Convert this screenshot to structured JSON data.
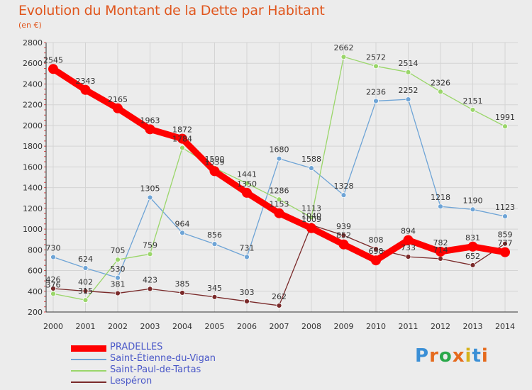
{
  "title": "Evolution du Montant de la Dette par Habitant",
  "subtitle": "(en €)",
  "logo": {
    "text": "Proxiti",
    "colors": [
      "#3a8fd6",
      "#e56a1d",
      "#2aa84a",
      "#e56a1d",
      "#d6b21a",
      "#3a8fd6",
      "#e56a1d"
    ]
  },
  "chart_data": {
    "type": "line",
    "title": "Evolution du Montant de la Dette par Habitant",
    "subtitle": "(en €)",
    "xlabel": "",
    "ylabel": "",
    "ylim": [
      200,
      2800
    ],
    "yticks": [
      200,
      400,
      600,
      800,
      1000,
      1200,
      1400,
      1600,
      1800,
      2000,
      2200,
      2400,
      2600,
      2800
    ],
    "x": [
      "2000",
      "2001",
      "2002",
      "2003",
      "2004",
      "2005",
      "2006",
      "2007",
      "2008",
      "2009",
      "2010",
      "2011",
      "2012",
      "2013",
      "2014"
    ],
    "grid": true,
    "legend_position": "bottom-left",
    "series": [
      {
        "name": "PRADELLES",
        "color": "#ff0000",
        "values": [
          2545,
          2343,
          2165,
          1963,
          1872,
          1559,
          1350,
          1153,
          1009,
          852,
          698,
          894,
          782,
          831,
          777
        ]
      },
      {
        "name": "Saint-Étienne-du-Vigan",
        "color": "#6ea4d6",
        "values": [
          730,
          624,
          530,
          1305,
          964,
          856,
          731,
          1680,
          1588,
          1328,
          2236,
          2252,
          1218,
          1190,
          1123
        ]
      },
      {
        "name": "Saint-Paul-de-Tartas",
        "color": "#9ad66a",
        "values": [
          376,
          315,
          705,
          759,
          1784,
          1590,
          1441,
          1286,
          1113,
          2662,
          2572,
          2514,
          2326,
          2151,
          1991
        ]
      },
      {
        "name": "Lespéron",
        "color": "#7a2a2a",
        "values": [
          426,
          402,
          381,
          423,
          385,
          345,
          303,
          262,
          1040,
          939,
          808,
          733,
          714,
          652,
          859
        ]
      }
    ]
  }
}
